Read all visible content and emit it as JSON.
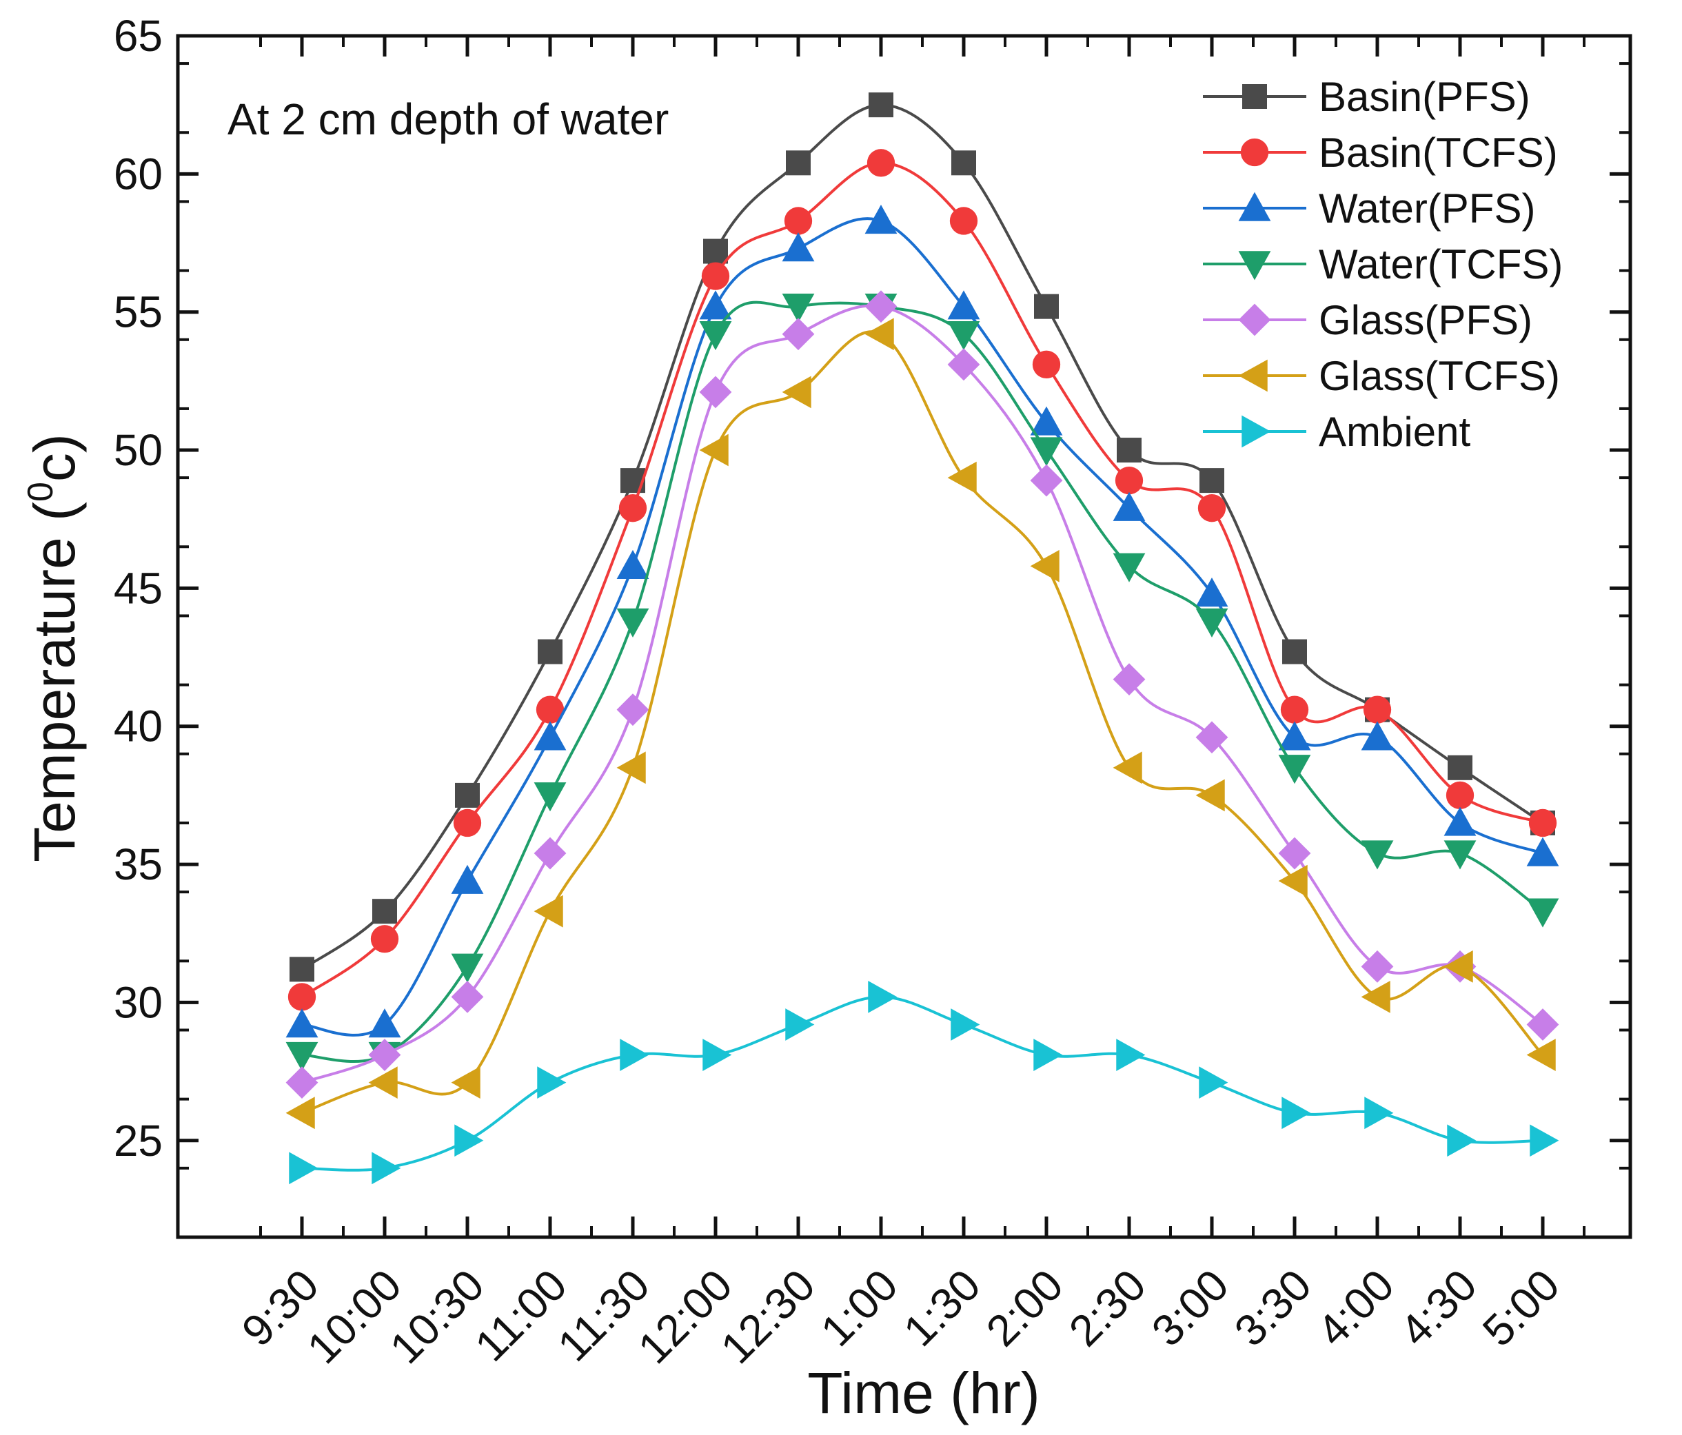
{
  "chart_data": {
    "type": "line",
    "title": "",
    "annotation": "At 2 cm depth of water",
    "xlabel": "Time (hr)",
    "ylabel": "Temperature (",
    "ylabel_sup": "0",
    "ylabel_unit": "c)",
    "ylim": [
      21.5,
      65
    ],
    "yticks": [
      25,
      30,
      35,
      40,
      45,
      50,
      55,
      60,
      65
    ],
    "ytick_labels": [
      "25",
      "30",
      "35",
      "40",
      "45",
      "50",
      "55",
      "60",
      "65"
    ],
    "minor_y_step": 2.5,
    "minor_x_ticks": true,
    "grid": false,
    "legend_position": "top-right",
    "categories": [
      "9:30",
      "10:00",
      "10:30",
      "11:00",
      "11:30",
      "12:00",
      "12:30",
      "1:00",
      "1:30",
      "2:00",
      "2:30",
      "3:00",
      "3:30",
      "4:00",
      "4:30",
      "5:00"
    ],
    "series": [
      {
        "name": "Basin(PFS)",
        "color": "#4a4a4a",
        "marker": "square",
        "values": [
          31.2,
          33.3,
          37.5,
          42.7,
          48.9,
          57.2,
          60.4,
          62.5,
          60.4,
          55.2,
          50.0,
          48.9,
          42.7,
          40.6,
          38.5,
          36.5
        ]
      },
      {
        "name": "Basin(TCFS)",
        "color": "#f03a3a",
        "marker": "circle",
        "values": [
          30.2,
          32.3,
          36.5,
          40.6,
          47.9,
          56.3,
          58.3,
          60.4,
          58.3,
          53.1,
          48.9,
          47.9,
          40.6,
          40.6,
          37.5,
          36.5
        ]
      },
      {
        "name": "Water(PFS)",
        "color": "#1a6fd0",
        "marker": "triangle-up",
        "values": [
          29.2,
          29.2,
          34.4,
          39.6,
          45.8,
          55.2,
          57.3,
          58.3,
          55.2,
          51.0,
          47.9,
          44.8,
          39.6,
          39.6,
          36.5,
          35.4
        ]
      },
      {
        "name": "Water(TCFS)",
        "color": "#1e9e6a",
        "marker": "triangle-down",
        "values": [
          28.1,
          28.1,
          31.3,
          37.5,
          43.8,
          54.2,
          55.2,
          55.2,
          54.2,
          50.0,
          45.8,
          43.8,
          38.5,
          35.4,
          35.4,
          33.3
        ]
      },
      {
        "name": "Glass(PFS)",
        "color": "#c77ee8",
        "marker": "diamond",
        "values": [
          27.1,
          28.1,
          30.2,
          35.4,
          40.6,
          52.1,
          54.2,
          55.2,
          53.1,
          48.9,
          41.7,
          39.6,
          35.4,
          31.3,
          31.3,
          29.2
        ]
      },
      {
        "name": "Glass(TCFS)",
        "color": "#d4a017",
        "marker": "triangle-left",
        "values": [
          26.0,
          27.1,
          27.1,
          33.3,
          38.5,
          50.0,
          52.1,
          54.2,
          49.0,
          45.8,
          38.5,
          37.5,
          34.4,
          30.2,
          31.3,
          28.1
        ]
      },
      {
        "name": "Ambient",
        "color": "#19c2d4",
        "marker": "triangle-right",
        "values": [
          24.0,
          24.0,
          25.0,
          27.1,
          28.1,
          28.1,
          29.2,
          30.2,
          29.2,
          28.1,
          28.1,
          27.1,
          26.0,
          26.0,
          25.0,
          25.0
        ]
      }
    ]
  }
}
